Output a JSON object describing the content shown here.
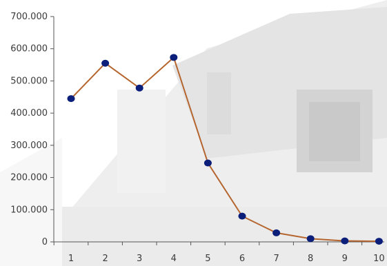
{
  "chart_data": {
    "type": "line",
    "title": "",
    "xlabel": "",
    "ylabel": "",
    "x": [
      1,
      2,
      3,
      4,
      5,
      6,
      7,
      8,
      9,
      10
    ],
    "x_tick_labels": [
      "1",
      "2",
      "3",
      "4",
      "5",
      "6",
      "7",
      "8",
      "9",
      "10"
    ],
    "series": [
      {
        "values": [
          445000,
          555000,
          478000,
          573000,
          245000,
          80000,
          28000,
          10000,
          3000,
          2000
        ]
      }
    ],
    "y_tick_values": [
      0,
      100000,
      200000,
      300000,
      400000,
      500000,
      600000,
      700000
    ],
    "y_tick_labels": [
      "0",
      "100.000",
      "200.000",
      "300.000",
      "400.000",
      "500.000",
      "600.000",
      "700.000"
    ],
    "ylim": [
      0,
      700000
    ],
    "grid": false,
    "legend": "none",
    "colors": {
      "line": "#b5652e",
      "marker": "#0b1f7a",
      "axis": "#555555",
      "background_wash": "#e9e9e9"
    }
  }
}
